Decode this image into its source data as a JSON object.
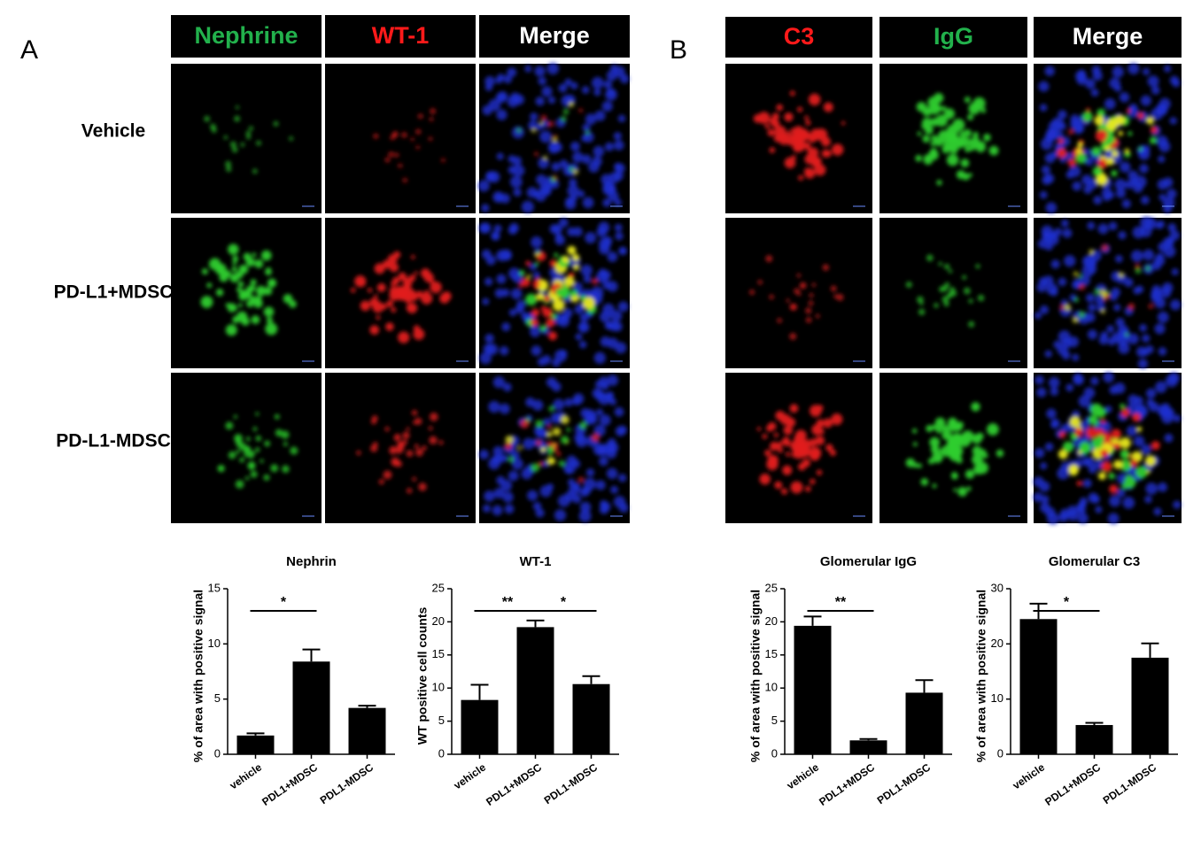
{
  "panels": [
    {
      "label": "A",
      "columns": [
        {
          "text": "Nephrine",
          "color": "#22b14c"
        },
        {
          "text": "WT-1",
          "color": "#ff1a1a"
        },
        {
          "text": "Merge",
          "color": "#ffffff"
        }
      ],
      "rows": [
        "Vehicle",
        "PD-L1+MDSC",
        "PD-L1-MDSC"
      ]
    },
    {
      "label": "B",
      "columns": [
        {
          "text": "C3",
          "color": "#ff1a1a"
        },
        {
          "text": "IgG",
          "color": "#22b14c"
        },
        {
          "text": "Merge",
          "color": "#ffffff"
        }
      ]
    }
  ],
  "chart_data": [
    {
      "type": "bar",
      "title": "Nephrin",
      "ylabel": "% of area with positive signal",
      "color": "#000000",
      "categories": [
        "vehicle",
        "PDL1+MDSC",
        "PDL1-MDSC"
      ],
      "values": [
        1.7,
        8.4,
        4.2
      ],
      "errors": [
        0.2,
        1.1,
        0.2
      ],
      "ylim": [
        0,
        15
      ],
      "yticks": [
        0,
        5,
        10,
        15
      ],
      "annotations": [
        {
          "text": "*",
          "from": "vehicle",
          "to": "PDL1+MDSC"
        }
      ]
    },
    {
      "type": "bar",
      "title": "WT-1",
      "ylabel": "WT positive cell counts",
      "color": "#000000",
      "categories": [
        "vehicle",
        "PDL1+MDSC",
        "PDL1-MDSC"
      ],
      "values": [
        8.2,
        19.2,
        10.6
      ],
      "errors": [
        2.3,
        1.0,
        1.2
      ],
      "ylim": [
        0,
        25
      ],
      "yticks": [
        0,
        5,
        10,
        15,
        20,
        25
      ],
      "annotations": [
        {
          "text": "**",
          "from": "vehicle",
          "to": "PDL1+MDSC"
        },
        {
          "text": "*",
          "from": "PDL1+MDSC",
          "to": "PDL1-MDSC"
        }
      ]
    },
    {
      "type": "bar",
      "title": "Glomerular IgG",
      "ylabel": "% of area with positive signal",
      "color": "#000000",
      "categories": [
        "vehicle",
        "PDL1+MDSC",
        "PDL1-MDSC"
      ],
      "values": [
        19.4,
        2.1,
        9.3
      ],
      "errors": [
        1.4,
        0.2,
        1.9
      ],
      "ylim": [
        0,
        25
      ],
      "yticks": [
        0,
        5,
        10,
        15,
        20,
        25
      ],
      "annotations": [
        {
          "text": "**",
          "from": "vehicle",
          "to": "PDL1+MDSC"
        }
      ]
    },
    {
      "type": "bar",
      "title": "Glomerular C3",
      "ylabel": "% of area with positive signal",
      "color": "#000000",
      "categories": [
        "vehicle",
        "PDL1+MDSC",
        "PDL1-MDSC"
      ],
      "values": [
        24.5,
        5.3,
        17.5
      ],
      "errors": [
        2.8,
        0.4,
        2.6
      ],
      "ylim": [
        0,
        30
      ],
      "yticks": [
        0,
        10,
        20,
        30
      ],
      "annotations": [
        {
          "text": "*",
          "from": "vehicle",
          "to": "PDL1+MDSC"
        }
      ]
    }
  ]
}
